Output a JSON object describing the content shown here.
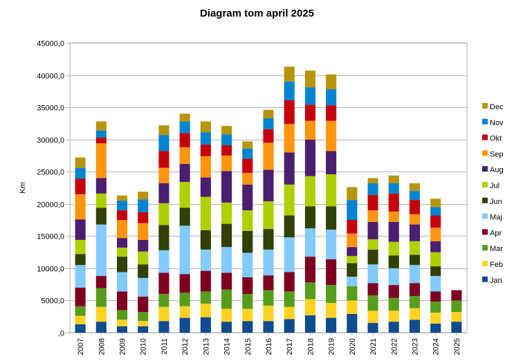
{
  "chart_data": {
    "type": "bar",
    "stacked": true,
    "title": "Diagram tom april 2025",
    "xlabel": "",
    "ylabel": "Km",
    "ylim": [
      0,
      45000
    ],
    "y_ticks": [
      0,
      5000,
      10000,
      15000,
      20000,
      25000,
      30000,
      35000,
      40000,
      45000
    ],
    "y_tick_labels": [
      ",0",
      "5000,0",
      "10000,0",
      "15000,0",
      "20000,0",
      "25000,0",
      "30000,0",
      "35000,0",
      "40000,0",
      "45000,0"
    ],
    "grid": true,
    "legend_position": "right",
    "categories": [
      "2007",
      "2008",
      "2009",
      "2010",
      "2011",
      "2012",
      "2013",
      "2014",
      "2015",
      "2016",
      "2017",
      "2018",
      "2019",
      "2020",
      "2021",
      "2022",
      "2023",
      "2024",
      "2025"
    ],
    "series": [
      {
        "name": "Jan",
        "color": "#0f4b8f",
        "values": [
          1300,
          1700,
          1000,
          1000,
          1800,
          2300,
          2400,
          1700,
          1800,
          1800,
          2100,
          2700,
          2300,
          2900,
          1500,
          1700,
          2000,
          1400,
          1700
        ]
      },
      {
        "name": "Feb",
        "color": "#ffd320",
        "values": [
          1300,
          2300,
          1000,
          800,
          2200,
          1800,
          2100,
          2000,
          1900,
          2400,
          1900,
          2500,
          2300,
          2100,
          1900,
          1700,
          1800,
          1700,
          1500
        ]
      },
      {
        "name": "Mar",
        "color": "#579d1c",
        "values": [
          1500,
          2900,
          1500,
          1400,
          2000,
          2100,
          1900,
          3000,
          2300,
          2400,
          2400,
          2600,
          2800,
          2200,
          2400,
          2000,
          1900,
          1700,
          1800
        ]
      },
      {
        "name": "Apr",
        "color": "#7e0021",
        "values": [
          2900,
          1900,
          2900,
          2400,
          3300,
          2900,
          3200,
          2600,
          2600,
          2300,
          3000,
          4000,
          4000,
          0,
          1900,
          2000,
          2000,
          1600,
          1600
        ]
      },
      {
        "name": "Maj",
        "color": "#83caff",
        "values": [
          3500,
          8000,
          3000,
          2900,
          3500,
          7500,
          3300,
          4000,
          3800,
          4000,
          5400,
          4400,
          4600,
          1500,
          2900,
          2600,
          2800,
          2400,
          0
        ]
      },
      {
        "name": "Jun",
        "color": "#314004",
        "values": [
          1700,
          2600,
          2400,
          2100,
          3900,
          2800,
          3000,
          3600,
          3400,
          3200,
          3400,
          3400,
          3600,
          2100,
          2300,
          2000,
          1600,
          1500,
          0
        ]
      },
      {
        "name": "Jul",
        "color": "#aecf00",
        "values": [
          2200,
          2200,
          1400,
          2000,
          3400,
          4000,
          5200,
          3300,
          3200,
          4300,
          4800,
          4700,
          5000,
          1100,
          1600,
          2100,
          2100,
          2200,
          0
        ]
      },
      {
        "name": "Aug",
        "color": "#4b1f6f",
        "values": [
          3200,
          2400,
          1500,
          1800,
          3100,
          2800,
          3000,
          4900,
          4000,
          4900,
          5000,
          5700,
          3600,
          1400,
          2700,
          3100,
          2600,
          1700,
          0
        ]
      },
      {
        "name": "Sep",
        "color": "#ff950e",
        "values": [
          3900,
          5400,
          2800,
          2600,
          2400,
          2600,
          3300,
          2400,
          1800,
          4200,
          4400,
          2900,
          4700,
          2100,
          1800,
          1600,
          1600,
          2100,
          0
        ]
      },
      {
        "name": "Okt",
        "color": "#c5000b",
        "values": [
          2400,
          900,
          1500,
          1700,
          2600,
          2200,
          1800,
          1600,
          2200,
          2100,
          3700,
          2500,
          2400,
          2100,
          2400,
          2800,
          2200,
          1900,
          0
        ]
      },
      {
        "name": "Nov",
        "color": "#0084d1",
        "values": [
          1700,
          1100,
          1500,
          2000,
          2500,
          1800,
          1900,
          1700,
          1600,
          1700,
          2900,
          2700,
          2500,
          3100,
          1800,
          1600,
          1400,
          1300,
          0
        ]
      },
      {
        "name": "Dec",
        "color": "#b8940b",
        "values": [
          1600,
          1400,
          800,
          1200,
          1500,
          1200,
          1700,
          1300,
          1100,
          1300,
          2300,
          2600,
          2300,
          2000,
          800,
          1200,
          1200,
          1300,
          0
        ]
      }
    ]
  }
}
